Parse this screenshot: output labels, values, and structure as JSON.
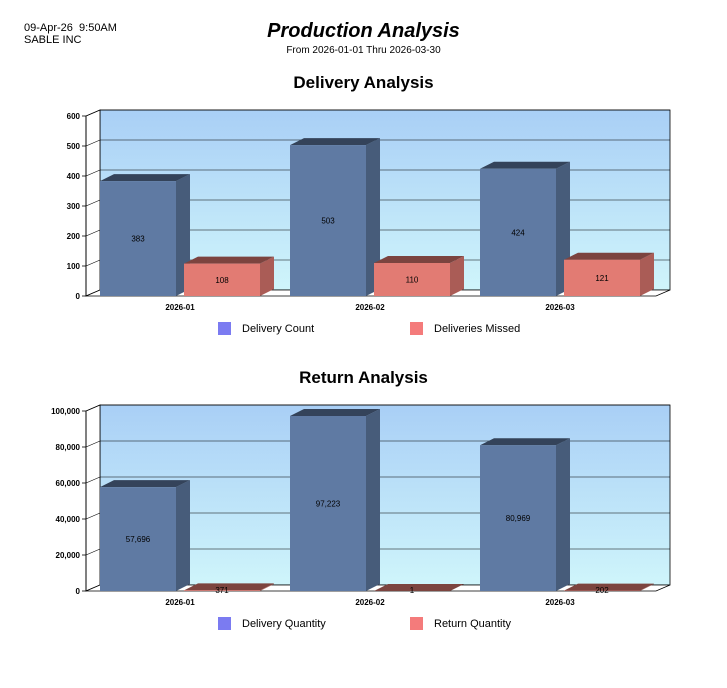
{
  "header": {
    "timestamp": "09-Apr-26  9:50AM",
    "company": "SABLE INC",
    "title": "Production Analysis",
    "subtitle": "From 2026-01-01 Thru 2026-03-30"
  },
  "colors": {
    "plot_top": "#a9cff6",
    "plot_bottom": "#cff5fb",
    "series1_bar": "#5f7aa3",
    "series2_bar": "#e27b73",
    "series1_legend": "#7b7bf1",
    "series2_legend": "#f47b7b"
  },
  "chart_data": [
    {
      "type": "bar",
      "title": "Delivery Analysis",
      "categories": [
        "2026-01",
        "2026-02",
        "2026-03"
      ],
      "series": [
        {
          "name": "Delivery Count",
          "values": [
            383,
            503,
            424
          ],
          "labels": [
            "383",
            "503",
            "424"
          ]
        },
        {
          "name": "Deliveries Missed",
          "values": [
            108,
            110,
            121
          ],
          "labels": [
            "108",
            "110",
            "121"
          ]
        }
      ],
      "ylim": [
        0,
        600
      ],
      "yticks": [
        0,
        100,
        200,
        300,
        400,
        500,
        600
      ],
      "ytick_labels": [
        "0",
        "100",
        "200",
        "300",
        "400",
        "500",
        "600"
      ],
      "legend": "bottom"
    },
    {
      "type": "bar",
      "title": "Return Analysis",
      "categories": [
        "2026-01",
        "2026-02",
        "2026-03"
      ],
      "series": [
        {
          "name": "Delivery Quantity",
          "values": [
            57696,
            97223,
            80969
          ],
          "labels": [
            "57,696",
            "97,223",
            "80,969"
          ]
        },
        {
          "name": "Return Quantity",
          "values": [
            371,
            1,
            202
          ],
          "labels": [
            "371",
            "1",
            "202"
          ]
        }
      ],
      "ylim": [
        0,
        100000
      ],
      "yticks": [
        0,
        20000,
        40000,
        60000,
        80000,
        100000
      ],
      "ytick_labels": [
        "0",
        "20,000",
        "40,000",
        "60,000",
        "80,000",
        "100,000"
      ],
      "legend": "bottom"
    }
  ]
}
